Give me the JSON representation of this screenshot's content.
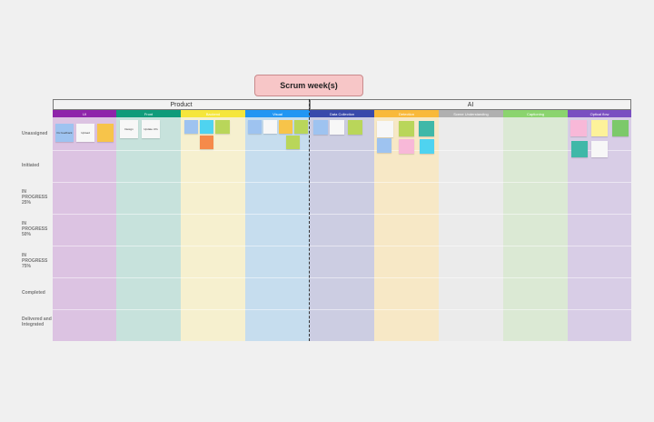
{
  "board": {
    "title": "Scrum week(s)"
  },
  "groups": [
    {
      "label": "Product"
    },
    {
      "label": "AI"
    }
  ],
  "columns": [
    {
      "label": "UI",
      "header": "#8e24aa",
      "body": "#dcc3e2"
    },
    {
      "label": "Front",
      "header": "#0f9b7a",
      "body": "#c7e2dc"
    },
    {
      "label": "Backend",
      "header": "#f5e63c",
      "body": "#f6f0cf"
    },
    {
      "label": "Visual",
      "header": "#2196f3",
      "body": "#c6ddee"
    },
    {
      "label": "Data Collection",
      "header": "#3949ab",
      "body": "#cccde2"
    },
    {
      "label": "Detection",
      "header": "#f9b93a",
      "body": "#f7e8c6"
    },
    {
      "label": "Scene Understanding",
      "header": "#b0b0b0",
      "body": "#ebebeb"
    },
    {
      "label": "Captioning",
      "header": "#8bd46e",
      "body": "#dbe9d4"
    },
    {
      "label": "Optical flow",
      "header": "#7a4fc1",
      "body": "#d8cde6"
    }
  ],
  "rows": [
    {
      "label": "Unassigned"
    },
    {
      "label": "Initiated"
    },
    {
      "label": "IN PROGRESS 25%"
    },
    {
      "label": "IN PROGRESS 50%"
    },
    {
      "label": "IN PROGRESS 75%"
    },
    {
      "label": "Completed"
    },
    {
      "label": "Delivered and Integrated"
    }
  ],
  "notes": [
    {
      "text": "Fix feedback",
      "color": "#9ec3f0"
    },
    {
      "text": "Upload",
      "color": "#f7f7f7"
    },
    {
      "text": "",
      "color": "#f7c44a"
    },
    {
      "text": "Design",
      "color": "#f7f7f7"
    },
    {
      "text": "Update UI's",
      "color": "#f7f7f7"
    },
    {
      "text": "",
      "color": "#9ec3f0"
    },
    {
      "text": "",
      "color": "#4fd3f0"
    },
    {
      "text": "",
      "color": "#b9d65a"
    },
    {
      "text": "",
      "color": "#f58a4a"
    },
    {
      "text": "",
      "color": "#9ec3f0"
    },
    {
      "text": "",
      "color": "#f7f7f7"
    },
    {
      "text": "",
      "color": "#f7c44a"
    },
    {
      "text": "",
      "color": "#b9d65a"
    },
    {
      "text": "",
      "color": "#b9d65a"
    },
    {
      "text": "",
      "color": "#9ec3f0"
    },
    {
      "text": "",
      "color": "#f7f7f7"
    },
    {
      "text": "",
      "color": "#b9d65a"
    },
    {
      "text": "",
      "color": "#f7f7f7"
    },
    {
      "text": "",
      "color": "#b9d65a"
    },
    {
      "text": "",
      "color": "#3fb8a8"
    },
    {
      "text": "",
      "color": "#9ec3f0"
    },
    {
      "text": "",
      "color": "#f8b8d8"
    },
    {
      "text": "",
      "color": "#4fd3f0"
    },
    {
      "text": "",
      "color": "#f8b8d8"
    },
    {
      "text": "",
      "color": "#fdf29a"
    },
    {
      "text": "",
      "color": "#7cc96a"
    },
    {
      "text": "",
      "color": "#3fb8a8"
    },
    {
      "text": "",
      "color": "#f7f7f7"
    }
  ]
}
